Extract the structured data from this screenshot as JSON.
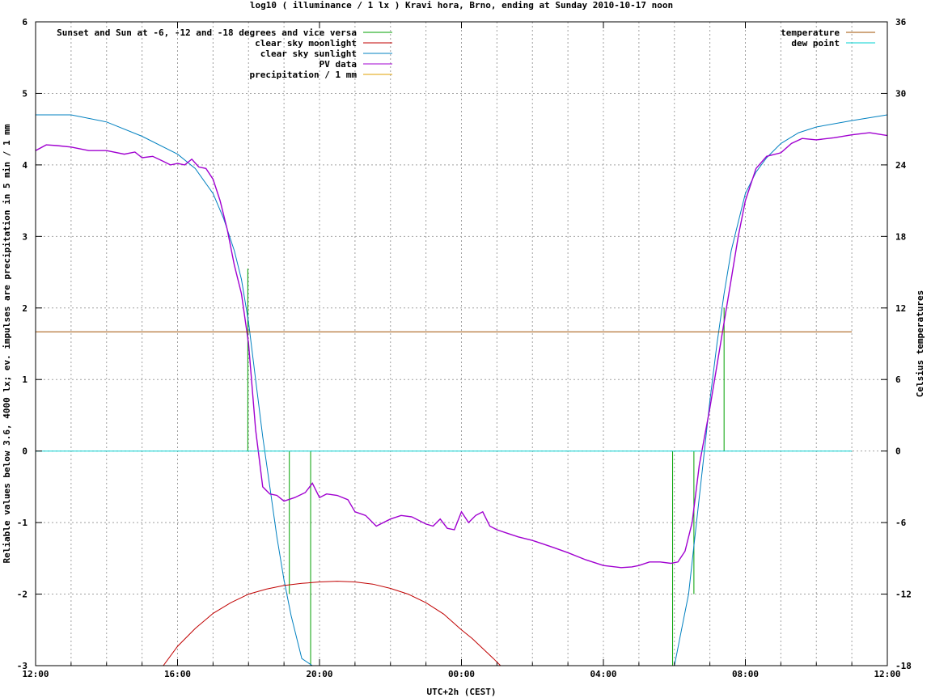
{
  "chart_data": {
    "type": "line",
    "title": "log10 ( illuminance / 1 lx ) Kravi hora, Brno, ending at Sunday 2010-10-17 noon",
    "xlabel": "UTC+2h (CEST)",
    "ylabel": "Reliable values below 3.6, 4000 lx; ev. impulses are precipitation in 5 min / 1 mm",
    "y2label": "Celsius temperatures",
    "xlim": [
      0,
      24
    ],
    "ylim": [
      -3,
      6
    ],
    "y2lim": [
      -18,
      36
    ],
    "x_ticks": [
      {
        "v": 0,
        "label": "12:00"
      },
      {
        "v": 4,
        "label": "16:00"
      },
      {
        "v": 8,
        "label": "20:00"
      },
      {
        "v": 12,
        "label": "00:00"
      },
      {
        "v": 16,
        "label": "04:00"
      },
      {
        "v": 20,
        "label": "08:00"
      },
      {
        "v": 24,
        "label": "12:00"
      }
    ],
    "y_ticks": [
      {
        "v": -3,
        "label": "-3"
      },
      {
        "v": -2,
        "label": "-2"
      },
      {
        "v": -1,
        "label": "-1"
      },
      {
        "v": 0,
        "label": "0"
      },
      {
        "v": 1,
        "label": "1"
      },
      {
        "v": 2,
        "label": "2"
      },
      {
        "v": 3,
        "label": "3"
      },
      {
        "v": 4,
        "label": "4"
      },
      {
        "v": 5,
        "label": "5"
      },
      {
        "v": 6,
        "label": "6"
      }
    ],
    "y2_ticks": [
      {
        "v": -18,
        "label": "-18"
      },
      {
        "v": -12,
        "label": "-12"
      },
      {
        "v": -6,
        "label": "-6"
      },
      {
        "v": 0,
        "label": "0"
      },
      {
        "v": 6,
        "label": "6"
      },
      {
        "v": 12,
        "label": "12"
      },
      {
        "v": 18,
        "label": "18"
      },
      {
        "v": 24,
        "label": "24"
      },
      {
        "v": 30,
        "label": "30"
      },
      {
        "v": 36,
        "label": "36"
      }
    ],
    "grid": true,
    "legend_left": [
      {
        "name": "Sunset and Sun at -6, -12 and -18 degrees and vice versa",
        "color": "#00a000"
      },
      {
        "name": "clear sky moonlight",
        "color": "#c00000"
      },
      {
        "name": "clear sky sunlight",
        "color": "#0080c0"
      },
      {
        "name": "PV data",
        "color": "#a000d0"
      },
      {
        "name": "precipitation / 1 mm",
        "color": "#e0a000"
      }
    ],
    "legend_right": [
      {
        "name": "temperature",
        "color": "#a05000"
      },
      {
        "name": "dew point",
        "color": "#00d0d0"
      }
    ],
    "sun_event_impulses": [
      {
        "x": 5.98,
        "y": 2.55
      },
      {
        "x": 7.15,
        "y": -2.0
      },
      {
        "x": 7.75,
        "y": -3.0
      },
      {
        "x": 17.95,
        "y": -3.0
      },
      {
        "x": 18.55,
        "y": -2.0
      },
      {
        "x": 19.4,
        "y": 2.0
      }
    ],
    "series": [
      {
        "name": "clear sky sunlight",
        "color": "#0080c0",
        "x": [
          0,
          1,
          2,
          3,
          4,
          4.5,
          5,
          5.3,
          5.6,
          5.8,
          6,
          6.2,
          6.4,
          6.6,
          6.8,
          7,
          7.2,
          7.5,
          7.8,
          18,
          18.2,
          18.4,
          18.6,
          18.8,
          19,
          19.2,
          19.4,
          19.6,
          19.8,
          20,
          20.3,
          20.6,
          21,
          21.5,
          22,
          23,
          24
        ],
        "y": [
          4.7,
          4.7,
          4.6,
          4.4,
          4.15,
          3.95,
          3.6,
          3.25,
          2.8,
          2.4,
          1.8,
          1.0,
          0.2,
          -0.5,
          -1.2,
          -1.8,
          -2.3,
          -2.9,
          -3.0,
          -3.0,
          -2.5,
          -2.0,
          -1.1,
          -0.2,
          0.7,
          1.5,
          2.2,
          2.8,
          3.2,
          3.6,
          3.9,
          4.1,
          4.3,
          4.45,
          4.53,
          4.62,
          4.7
        ]
      },
      {
        "name": "clear sky moonlight",
        "color": "#c00000",
        "x": [
          3.6,
          4,
          4.5,
          5,
          5.5,
          6,
          6.5,
          7,
          7.5,
          8,
          8.5,
          9,
          9.5,
          10,
          10.5,
          11,
          11.5,
          12,
          12.3,
          12.6,
          12.9,
          13.1
        ],
        "y": [
          -3.0,
          -2.73,
          -2.48,
          -2.27,
          -2.12,
          -2.0,
          -1.93,
          -1.88,
          -1.85,
          -1.83,
          -1.82,
          -1.83,
          -1.86,
          -1.92,
          -2.0,
          -2.12,
          -2.28,
          -2.5,
          -2.62,
          -2.76,
          -2.9,
          -3.0
        ]
      },
      {
        "name": "PV data",
        "color": "#a000d0",
        "x": [
          0,
          0.3,
          0.6,
          1,
          1.5,
          2,
          2.5,
          2.8,
          3,
          3.3,
          3.6,
          3.8,
          4,
          4.2,
          4.4,
          4.6,
          4.8,
          5,
          5.2,
          5.4,
          5.6,
          5.8,
          6,
          6.2,
          6.4,
          6.6,
          6.8,
          7,
          7.3,
          7.6,
          7.8,
          8,
          8.2,
          8.5,
          8.8,
          9,
          9.3,
          9.6,
          10,
          10.3,
          10.6,
          11,
          11.2,
          11.4,
          11.6,
          11.8,
          12,
          12.2,
          12.4,
          12.6,
          12.8,
          13,
          13.3,
          13.6,
          14,
          14.3,
          14.6,
          15,
          15.5,
          16,
          16.5,
          16.8,
          17,
          17.3,
          17.6,
          17.9,
          18.1,
          18.3,
          18.5,
          18.7,
          19,
          19.3,
          19.6,
          19.8,
          20,
          20.3,
          20.6,
          21,
          21.3,
          21.6,
          22,
          22.5,
          23,
          23.5,
          24
        ],
        "y": [
          4.2,
          4.28,
          4.27,
          4.25,
          4.2,
          4.2,
          4.15,
          4.18,
          4.1,
          4.12,
          4.05,
          4.0,
          4.02,
          4.0,
          4.08,
          3.97,
          3.95,
          3.8,
          3.5,
          3.1,
          2.6,
          2.2,
          1.5,
          0.3,
          -0.5,
          -0.6,
          -0.62,
          -0.7,
          -0.65,
          -0.58,
          -0.45,
          -0.65,
          -0.6,
          -0.62,
          -0.68,
          -0.85,
          -0.9,
          -1.05,
          -0.95,
          -0.9,
          -0.92,
          -1.02,
          -1.05,
          -0.95,
          -1.08,
          -1.1,
          -0.85,
          -1.0,
          -0.9,
          -0.85,
          -1.05,
          -1.1,
          -1.15,
          -1.2,
          -1.25,
          -1.3,
          -1.35,
          -1.42,
          -1.52,
          -1.6,
          -1.63,
          -1.62,
          -1.6,
          -1.55,
          -1.55,
          -1.57,
          -1.55,
          -1.4,
          -1.0,
          -0.2,
          0.6,
          1.5,
          2.4,
          3.0,
          3.5,
          3.95,
          4.12,
          4.17,
          4.3,
          4.37,
          4.35,
          4.38,
          4.42,
          4.45,
          4.41
        ]
      },
      {
        "name": "temperature",
        "color": "#a05000",
        "axis": "y2",
        "x": [
          0,
          23
        ],
        "y": [
          10.0,
          10.0
        ]
      },
      {
        "name": "dew point",
        "color": "#00d0d0",
        "axis": "y2",
        "x": [
          0,
          23
        ],
        "y": [
          0,
          0
        ]
      }
    ]
  }
}
